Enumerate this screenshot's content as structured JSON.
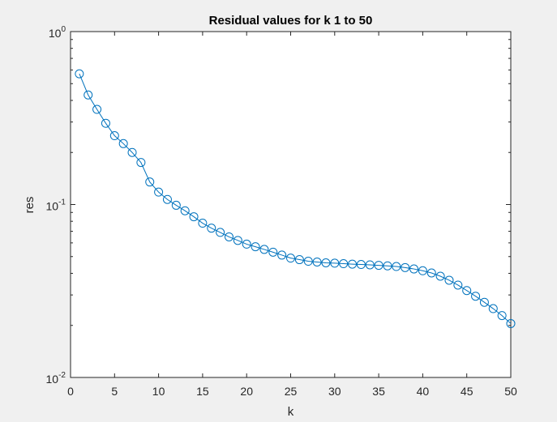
{
  "chart_data": {
    "type": "line",
    "title": "Residual values for k 1 to 50",
    "xlabel": "k",
    "ylabel": "res",
    "xlim": [
      0,
      50
    ],
    "ylim": [
      0.01,
      1
    ],
    "yscale": "log",
    "grid": false,
    "marker": "circle",
    "x_ticks": [
      0,
      5,
      10,
      15,
      20,
      25,
      30,
      35,
      40,
      45,
      50
    ],
    "y_ticks": [
      {
        "value": 1,
        "base": "10",
        "exp": "0"
      },
      {
        "value": 0.1,
        "base": "10",
        "exp": "-1"
      },
      {
        "value": 0.01,
        "base": "10",
        "exp": "-2"
      }
    ],
    "series": [
      {
        "color": "#0072bd",
        "x": [
          1,
          2,
          3,
          4,
          5,
          6,
          7,
          8,
          9,
          10,
          11,
          12,
          13,
          14,
          15,
          16,
          17,
          18,
          19,
          20,
          21,
          22,
          23,
          24,
          25,
          26,
          27,
          28,
          29,
          30,
          31,
          32,
          33,
          34,
          35,
          36,
          37,
          38,
          39,
          40,
          41,
          42,
          43,
          44,
          45,
          46,
          47,
          48,
          49,
          50
        ],
        "y": [
          0.57,
          0.43,
          0.355,
          0.295,
          0.25,
          0.225,
          0.2,
          0.175,
          0.135,
          0.118,
          0.107,
          0.099,
          0.092,
          0.085,
          0.078,
          0.073,
          0.069,
          0.065,
          0.062,
          0.059,
          0.057,
          0.055,
          0.053,
          0.051,
          0.049,
          0.048,
          0.047,
          0.0465,
          0.046,
          0.0458,
          0.0455,
          0.0452,
          0.045,
          0.0448,
          0.0445,
          0.0442,
          0.0438,
          0.0432,
          0.0424,
          0.0414,
          0.0402,
          0.0385,
          0.0365,
          0.0342,
          0.0318,
          0.0295,
          0.0272,
          0.025,
          0.0228,
          0.0205
        ]
      }
    ]
  }
}
